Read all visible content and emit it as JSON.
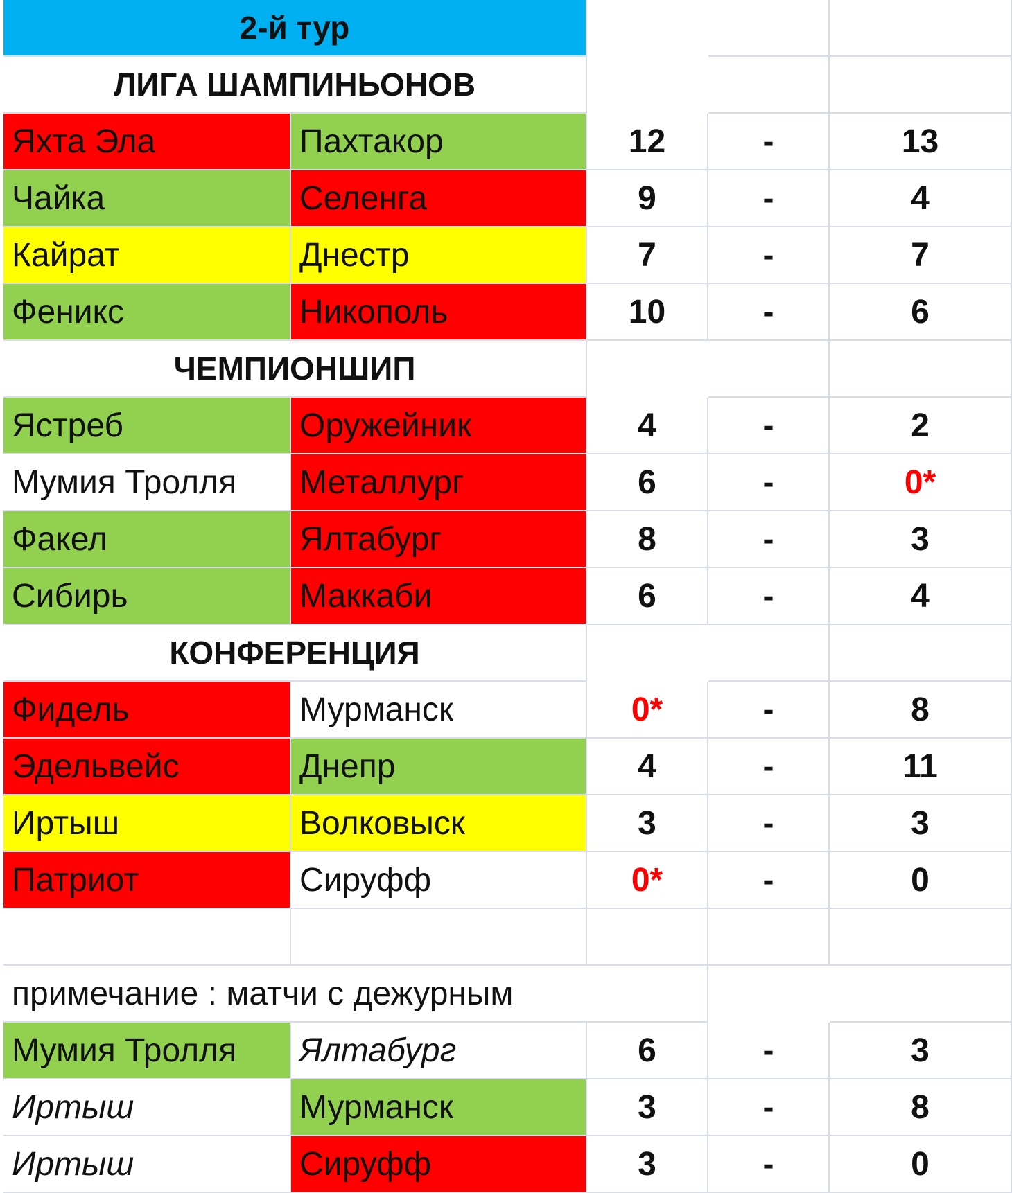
{
  "title": "2-й тур",
  "sections": {
    "champions": {
      "heading": "ЛИГА ШАМПИНЬОНОВ",
      "matches": [
        {
          "home": "Яхта Эла",
          "away": "Пахтакор",
          "home_score": "12",
          "sep": "-",
          "away_score": "13",
          "home_color": "red",
          "away_color": "green"
        },
        {
          "home": "Чайка",
          "away": "Селенга",
          "home_score": "9",
          "sep": "-",
          "away_score": "4",
          "home_color": "green",
          "away_color": "red"
        },
        {
          "home": "Кайрат",
          "away": "Днестр",
          "home_score": "7",
          "sep": "-",
          "away_score": "7",
          "home_color": "yellow",
          "away_color": "yellow"
        },
        {
          "home": "Феникс",
          "away": "Никополь",
          "home_score": "10",
          "sep": "-",
          "away_score": "6",
          "home_color": "green",
          "away_color": "red"
        }
      ]
    },
    "championship": {
      "heading": "ЧЕМПИОНШИП",
      "matches": [
        {
          "home": "Ястреб",
          "away": "Оружейник",
          "home_score": "4",
          "sep": "-",
          "away_score": "2",
          "home_color": "green",
          "away_color": "red"
        },
        {
          "home": "Мумия Тролля",
          "away": "Металлург",
          "home_score": "6",
          "sep": "-",
          "away_score": "0*",
          "home_color": "white",
          "away_color": "red"
        },
        {
          "home": "Факел",
          "away": "Ялтабург",
          "home_score": "8",
          "sep": "-",
          "away_score": "3",
          "home_color": "green",
          "away_color": "red"
        },
        {
          "home": "Сибирь",
          "away": "Маккаби",
          "home_score": "6",
          "sep": "-",
          "away_score": "4",
          "home_color": "green",
          "away_color": "red"
        }
      ]
    },
    "conference": {
      "heading": "КОНФЕРЕНЦИЯ",
      "matches": [
        {
          "home": "Фидель",
          "away": "Мурманск",
          "home_score": "0*",
          "sep": "-",
          "away_score": "8",
          "home_color": "red",
          "away_color": "white"
        },
        {
          "home": "Эдельвейс",
          "away": "Днепр",
          "home_score": "4",
          "sep": "-",
          "away_score": "11",
          "home_color": "red",
          "away_color": "green"
        },
        {
          "home": "Иртыш",
          "away": "Волковыск",
          "home_score": "3",
          "sep": "-",
          "away_score": "3",
          "home_color": "yellow",
          "away_color": "yellow"
        },
        {
          "home": "Патриот",
          "away": "Сируфф",
          "home_score": "0*",
          "sep": "-",
          "away_score": "0",
          "home_color": "red",
          "away_color": "white"
        }
      ]
    }
  },
  "note": "примечание : матчи с дежурным",
  "duty_matches": [
    {
      "home": "Мумия Тролля",
      "away": "Ялтабург",
      "home_score": "6",
      "sep": "-",
      "away_score": "3",
      "home_color": "green",
      "away_color": "white",
      "home_italic": false,
      "away_italic": true
    },
    {
      "home": "Иртыш",
      "away": "Мурманск",
      "home_score": "3",
      "sep": "-",
      "away_score": "8",
      "home_color": "white",
      "away_color": "green",
      "home_italic": true,
      "away_italic": false
    },
    {
      "home": "Иртыш",
      "away": "Сируфф",
      "home_score": "3",
      "sep": "-",
      "away_score": "0",
      "home_color": "white",
      "away_color": "red",
      "home_italic": true,
      "away_italic": false
    }
  ],
  "colors": {
    "red": "#ff0000",
    "green": "#92d050",
    "yellow": "#ffff00",
    "title_blue": "#00b0f0",
    "forfeit_text": "#ff0000",
    "grid": "#d8dde8"
  }
}
